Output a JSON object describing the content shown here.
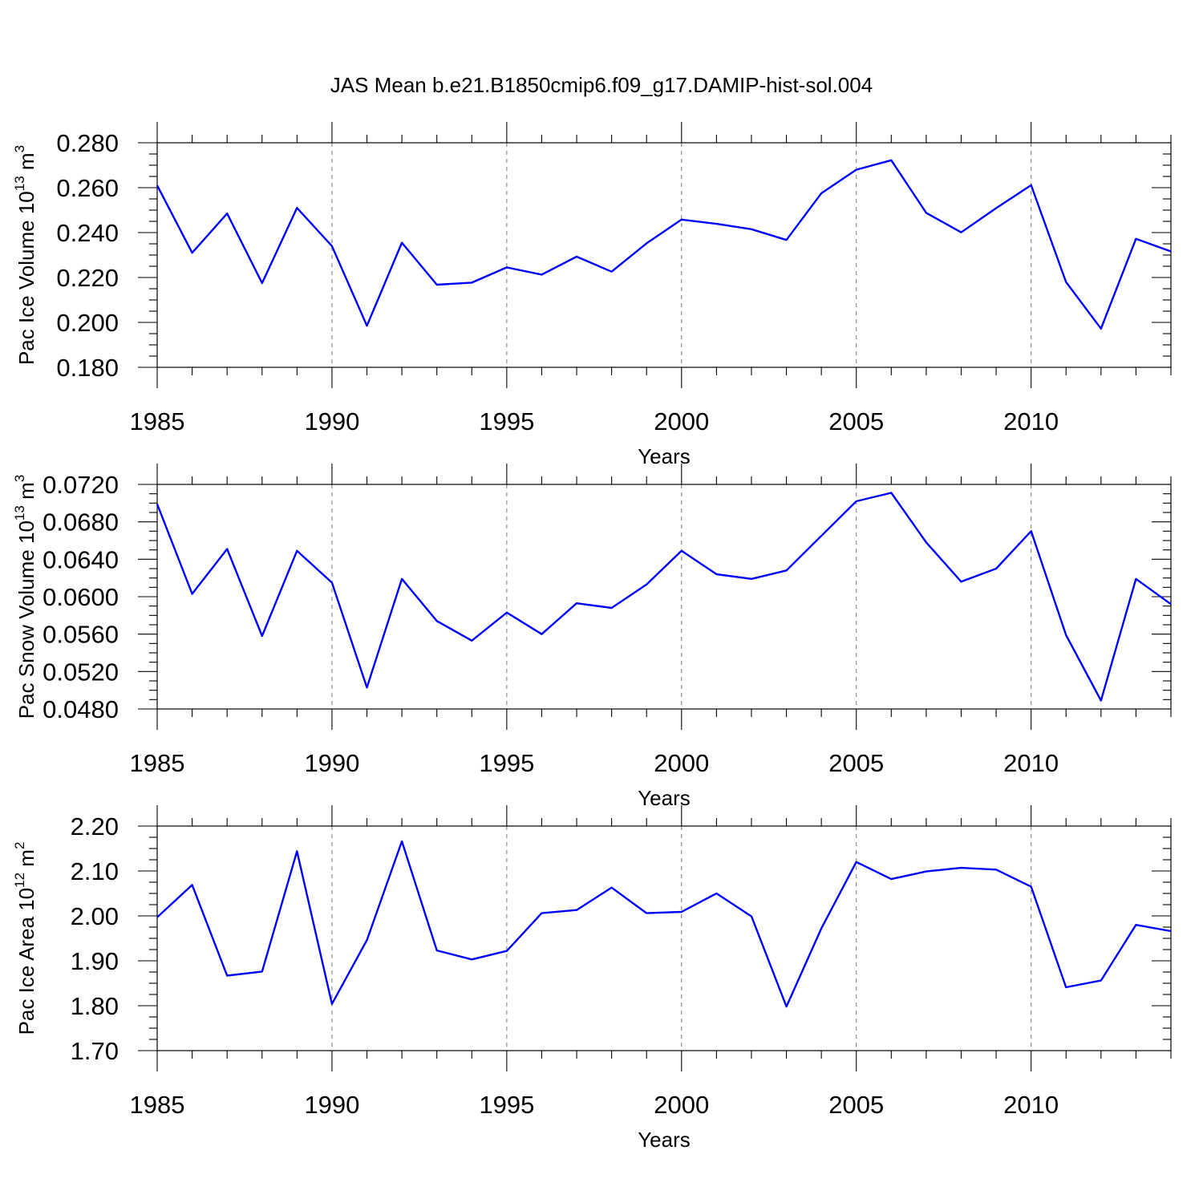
{
  "figure": {
    "title": "JAS Mean b.e21.B1850cmip6.f09_g17.DAMIP-hist-sol.004"
  },
  "colors": {
    "series": "#0000ff",
    "grid": "#777777",
    "axis": "#000000"
  },
  "chart_data": [
    {
      "type": "line",
      "title": "JAS Mean b.e21.B1850cmip6.f09_g17.DAMIP-hist-sol.004",
      "xlabel": "Years",
      "ylabel": {
        "base": "Pac Ice Volume 10",
        "sup": "13",
        "unit": " m",
        "unit_sup": "3"
      },
      "xlim": [
        1985,
        2014
      ],
      "ylim": [
        0.18,
        0.28
      ],
      "yticks": [
        0.18,
        0.2,
        0.22,
        0.24,
        0.26,
        0.28
      ],
      "ytick_labels": [
        "0.180",
        "0.200",
        "0.220",
        "0.240",
        "0.260",
        "0.280"
      ],
      "y_minor_step": 0.005,
      "xticks": [
        1985,
        1990,
        1995,
        2000,
        2005,
        2010
      ],
      "xtick_labels": [
        "1985",
        "1990",
        "1995",
        "2000",
        "2005",
        "2010"
      ],
      "x_gridlines": [
        1990,
        1995,
        2000,
        2005,
        2010
      ],
      "x": [
        1985,
        1986,
        1987,
        1988,
        1989,
        1990,
        1991,
        1992,
        1993,
        1994,
        1995,
        1996,
        1997,
        1998,
        1999,
        2000,
        2001,
        2002,
        2003,
        2004,
        2005,
        2006,
        2007,
        2008,
        2009,
        2010,
        2011,
        2012,
        2013,
        2014
      ],
      "series": [
        {
          "name": "Pac Ice Volume",
          "values": [
            0.261,
            0.231,
            0.2485,
            0.2175,
            0.251,
            0.234,
            0.1985,
            0.2355,
            0.2168,
            0.2177,
            0.2245,
            0.2213,
            0.2293,
            0.2226,
            0.2352,
            0.2458,
            0.2439,
            0.2415,
            0.2367,
            0.2575,
            0.268,
            0.2722,
            0.2488,
            0.2401,
            0.2509,
            0.2611,
            0.218,
            0.1972,
            0.2372,
            0.2316
          ]
        }
      ]
    },
    {
      "type": "line",
      "xlabel": "Years",
      "ylabel": {
        "base": "Pac Snow Volume 10",
        "sup": "13",
        "unit": " m",
        "unit_sup": "3"
      },
      "xlim": [
        1985,
        2014
      ],
      "ylim": [
        0.048,
        0.072
      ],
      "yticks": [
        0.048,
        0.052,
        0.056,
        0.06,
        0.064,
        0.068,
        0.072
      ],
      "ytick_labels": [
        "0.0480",
        "0.0520",
        "0.0560",
        "0.0600",
        "0.0640",
        "0.0680",
        "0.0720"
      ],
      "y_minor_step": 0.001,
      "xticks": [
        1985,
        1990,
        1995,
        2000,
        2005,
        2010
      ],
      "xtick_labels": [
        "1985",
        "1990",
        "1995",
        "2000",
        "2005",
        "2010"
      ],
      "x_gridlines": [
        1990,
        1995,
        2000,
        2005,
        2010
      ],
      "x": [
        1985,
        1986,
        1987,
        1988,
        1989,
        1990,
        1991,
        1992,
        1993,
        1994,
        1995,
        1996,
        1997,
        1998,
        1999,
        2000,
        2001,
        2002,
        2003,
        2004,
        2005,
        2006,
        2007,
        2008,
        2009,
        2010,
        2011,
        2012,
        2013,
        2014
      ],
      "series": [
        {
          "name": "Pac Snow Volume",
          "values": [
            0.0699,
            0.0603,
            0.0651,
            0.0558,
            0.0649,
            0.0615,
            0.0503,
            0.0619,
            0.0574,
            0.0553,
            0.0583,
            0.056,
            0.0593,
            0.0588,
            0.0613,
            0.0649,
            0.0624,
            0.0619,
            0.0628,
            0.0665,
            0.0702,
            0.0711,
            0.0658,
            0.0616,
            0.063,
            0.067,
            0.0559,
            0.0489,
            0.0619,
            0.0592
          ]
        }
      ]
    },
    {
      "type": "line",
      "xlabel": "Years",
      "ylabel": {
        "base": "Pac Ice Area 10",
        "sup": "12",
        "unit": " m",
        "unit_sup": "2"
      },
      "xlim": [
        1985,
        2014
      ],
      "ylim": [
        1.7,
        2.2
      ],
      "yticks": [
        1.7,
        1.8,
        1.9,
        2.0,
        2.1,
        2.2
      ],
      "ytick_labels": [
        "1.70",
        "1.80",
        "1.90",
        "2.00",
        "2.10",
        "2.20"
      ],
      "y_minor_step": 0.025,
      "xticks": [
        1985,
        1990,
        1995,
        2000,
        2005,
        2010
      ],
      "xtick_labels": [
        "1985",
        "1990",
        "1995",
        "2000",
        "2005",
        "2010"
      ],
      "x_gridlines": [
        1990,
        1995,
        2000,
        2005,
        2010
      ],
      "x": [
        1985,
        1986,
        1987,
        1988,
        1989,
        1990,
        1991,
        1992,
        1993,
        1994,
        1995,
        1996,
        1997,
        1998,
        1999,
        2000,
        2001,
        2002,
        2003,
        2004,
        2005,
        2006,
        2007,
        2008,
        2009,
        2010,
        2011,
        2012,
        2013,
        2014
      ],
      "series": [
        {
          "name": "Pac Ice Area",
          "values": [
            1.997,
            2.069,
            1.867,
            1.876,
            2.144,
            1.804,
            1.946,
            2.166,
            1.923,
            1.903,
            1.922,
            2.006,
            2.013,
            2.063,
            2.006,
            2.009,
            2.05,
            1.999,
            1.798,
            1.972,
            2.12,
            2.082,
            2.099,
            2.107,
            2.103,
            2.065,
            1.841,
            1.856,
            1.98,
            1.966
          ]
        }
      ]
    }
  ]
}
